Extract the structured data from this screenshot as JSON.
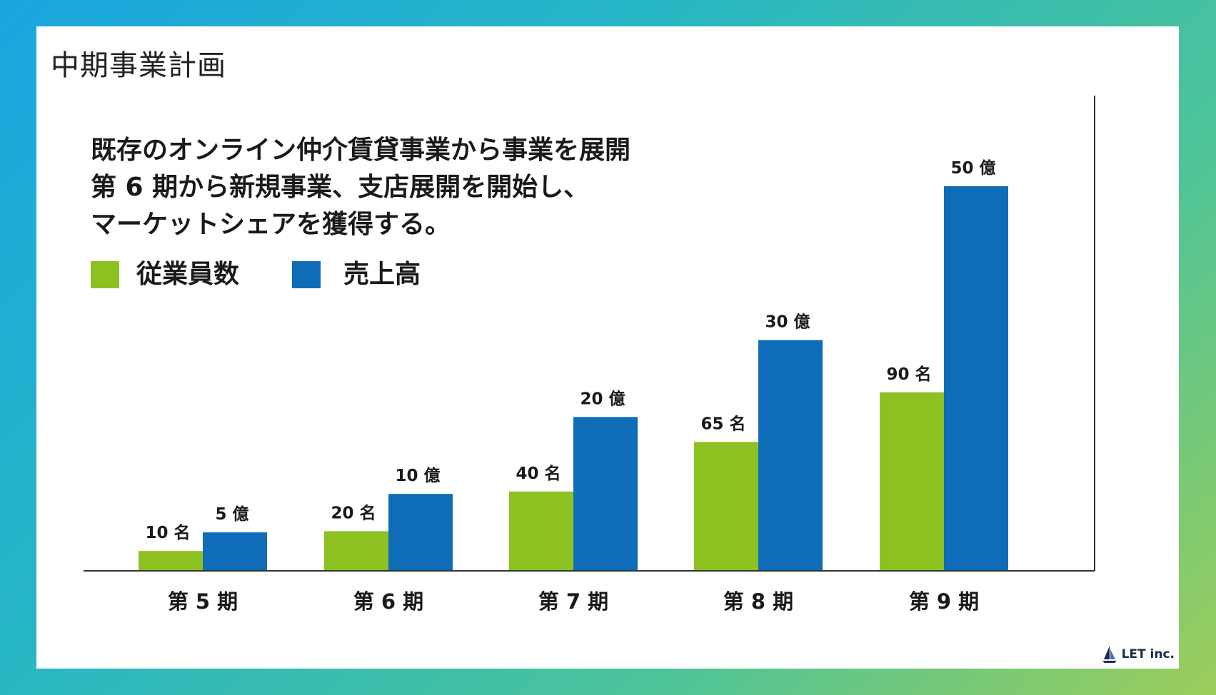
{
  "page_title": "中期事業計画",
  "headline": [
    "既存のオンライン仲介賃貸事業から事業を展開",
    "第 6 期から新規事業、支店展開を開始し、",
    "マーケットシェアを獲得する。"
  ],
  "logo_text": "LET inc.",
  "colors": {
    "employees": "#8dc121",
    "sales": "#0f6cb8",
    "axis": "#333333"
  },
  "chart_data": {
    "type": "bar",
    "categories": [
      "第 5 期",
      "第 6 期",
      "第 7 期",
      "第 8 期",
      "第 9 期"
    ],
    "series": [
      {
        "name": "従業員数",
        "values": [
          10,
          20,
          40,
          65,
          90
        ],
        "labels": [
          "10 名",
          "20 名",
          "40 名",
          "65 名",
          "90 名"
        ]
      },
      {
        "name": "売上高",
        "values": [
          5,
          10,
          20,
          30,
          50
        ],
        "labels": [
          "5 億",
          "10 億",
          "20 億",
          "30 億",
          "50 億"
        ]
      }
    ],
    "legend_position": "top-left",
    "grid": false
  }
}
